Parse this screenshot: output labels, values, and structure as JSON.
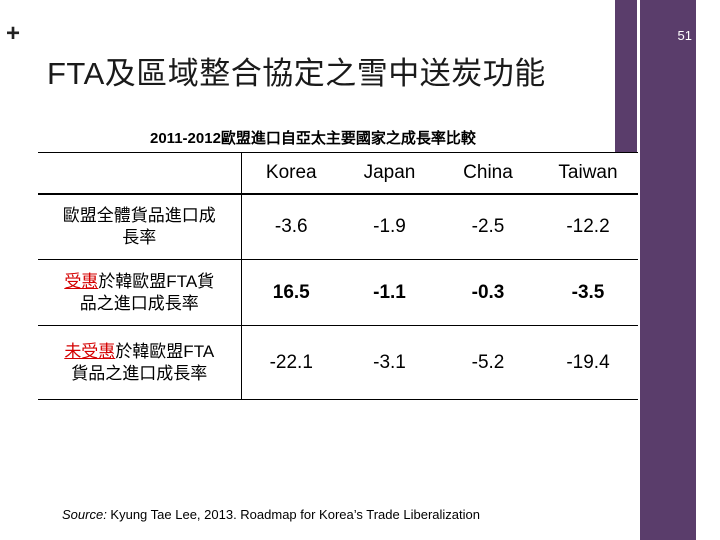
{
  "slide": {
    "number": "51",
    "title": "FTA及區域整合協定之雪中送炭功能"
  },
  "table": {
    "caption": "2011-2012歐盟進口自亞太主要國家之成長率比較",
    "columns": [
      "Korea",
      "Japan",
      "China",
      "Taiwan"
    ],
    "rows": [
      {
        "label_line1": "歐盟全體貨品進口成",
        "label_line2": "長率",
        "values": [
          "-3.6",
          "-1.9",
          "-2.5",
          "-12.2"
        ]
      },
      {
        "label_red": "受惠",
        "label_line1_rest": "於韓歐盟FTA貨",
        "label_line2": "品之進口成長率",
        "values": [
          "16.5",
          "-1.1",
          "-0.3",
          "-3.5"
        ]
      },
      {
        "label_red": "未受惠",
        "label_line1_rest": "於韓歐盟FTA",
        "label_line2": "貨品之進口成長率",
        "values": [
          "-22.1",
          "-3.1",
          "-5.2",
          "-19.4"
        ]
      }
    ]
  },
  "source": {
    "prefix": "Source:",
    "text": " Kyung Tae Lee, 2013. Roadmap for Korea’s Trade Liberalization"
  },
  "colors": {
    "sidebar": "#5a3d6b",
    "highlight_red": "#d40000"
  }
}
